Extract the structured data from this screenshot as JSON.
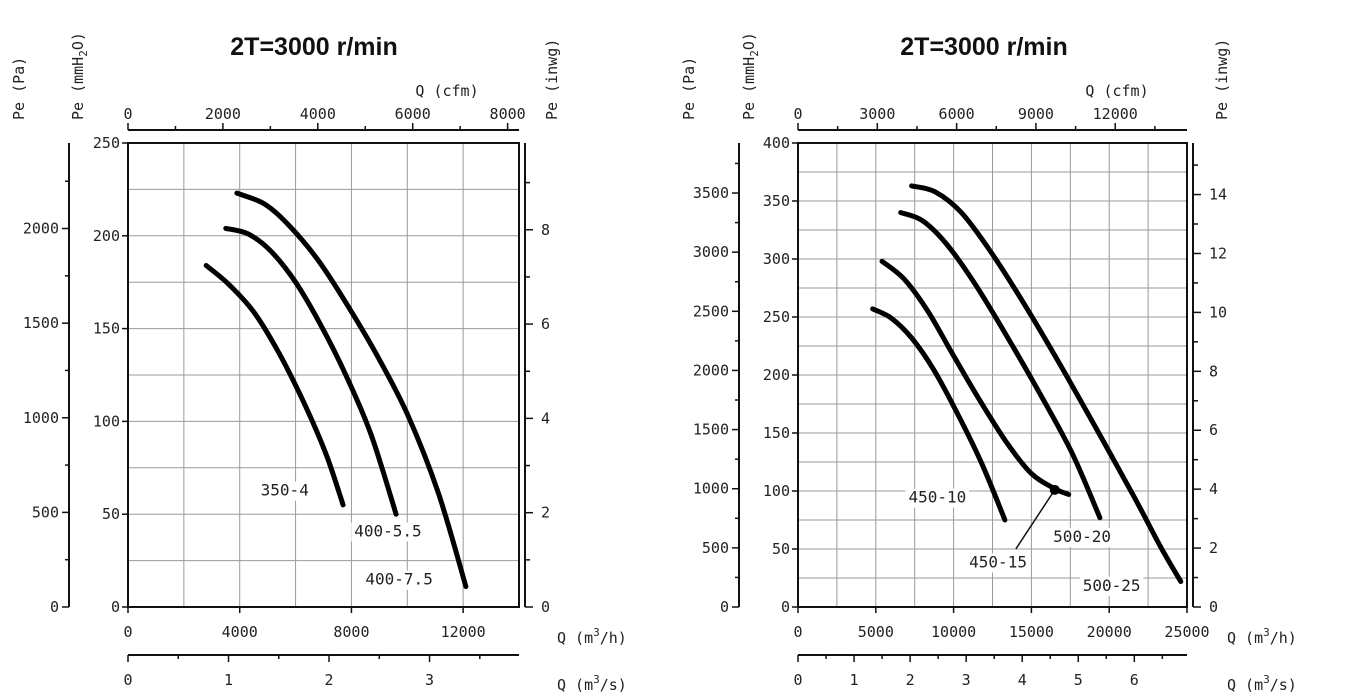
{
  "chart_data": [
    {
      "type": "line",
      "title": "2T=3000 r/min",
      "x": {
        "label": "Q (m3/h)",
        "range": [
          0,
          14000
        ],
        "ticks": [
          0,
          4000,
          8000,
          12000
        ],
        "minor_step": 2000
      },
      "x2_top": {
        "label": "Q (cfm)",
        "range": [
          0,
          8240
        ],
        "ticks": [
          0,
          2000,
          4000,
          6000,
          8000
        ],
        "minor_step": 1000
      },
      "x3_bottom": {
        "label": "Q (m3/s)",
        "range": [
          0,
          3.89
        ],
        "ticks": [
          0,
          1,
          2,
          3
        ],
        "minor_step": 0.5
      },
      "y": {
        "label": "Pe (mmH2O)",
        "range": [
          0,
          250
        ],
        "ticks": [
          0,
          50,
          100,
          150,
          200,
          250
        ],
        "grid_step": 25
      },
      "y_left_outer": {
        "label": "Pe (Pa)",
        "range": [
          0,
          2452
        ],
        "ticks": [
          0,
          500,
          1000,
          1500,
          2000
        ],
        "minor_step": 250
      },
      "y_right": {
        "label": "Pe (inwg)",
        "range": [
          0,
          9.84
        ],
        "ticks": [
          0,
          2,
          4,
          6,
          8
        ],
        "minor_step": 1
      },
      "grid": true,
      "series": [
        {
          "name": "350-4",
          "points": [
            [
              2800,
              184
            ],
            [
              3600,
              174
            ],
            [
              4500,
              159
            ],
            [
              5400,
              137
            ],
            [
              6300,
              110
            ],
            [
              7100,
              82
            ],
            [
              7700,
              55
            ]
          ],
          "label_at": [
            4750,
            60
          ]
        },
        {
          "name": "400-5.5",
          "points": [
            [
              3500,
              204
            ],
            [
              4300,
              201
            ],
            [
              5100,
              192
            ],
            [
              6000,
              175
            ],
            [
              6900,
              152
            ],
            [
              7800,
              125
            ],
            [
              8700,
              93
            ],
            [
              9600,
              50
            ]
          ],
          "label_at": [
            8100,
            38
          ]
        },
        {
          "name": "400-7.5",
          "points": [
            [
              3900,
              223
            ],
            [
              4900,
              217
            ],
            [
              5800,
              205
            ],
            [
              6800,
              187
            ],
            [
              7800,
              164
            ],
            [
              8900,
              136
            ],
            [
              10000,
              104
            ],
            [
              11100,
              62
            ],
            [
              12100,
              11
            ]
          ],
          "label_at": [
            8500,
            12
          ]
        }
      ]
    },
    {
      "type": "line",
      "title": "2T=3000 r/min",
      "x": {
        "label": "Q (m3/h)",
        "range": [
          0,
          25000
        ],
        "ticks": [
          0,
          5000,
          10000,
          15000,
          20000,
          25000
        ],
        "minor_step": 2500
      },
      "x2_top": {
        "label": "Q (cfm)",
        "range": [
          0,
          14715
        ],
        "ticks": [
          0,
          3000,
          6000,
          9000,
          12000
        ],
        "minor_step": 1500
      },
      "x3_bottom": {
        "label": "Q (m3/s)",
        "range": [
          0,
          6.94
        ],
        "ticks": [
          0,
          1,
          2,
          3,
          4,
          5,
          6
        ],
        "minor_step": 0.5
      },
      "y": {
        "label": "Pe (mmH2O)",
        "range": [
          0,
          400
        ],
        "ticks": [
          0,
          50,
          100,
          150,
          200,
          250,
          300,
          350,
          400
        ],
        "grid_step": 25
      },
      "y_left_outer": {
        "label": "Pe (Pa)",
        "range": [
          0,
          3923
        ],
        "ticks": [
          0,
          500,
          1000,
          1500,
          2000,
          2500,
          3000,
          3500
        ],
        "minor_step": 250
      },
      "y_right": {
        "label": "Pe (inwg)",
        "range": [
          0,
          15.75
        ],
        "ticks": [
          0,
          2,
          4,
          6,
          8,
          10,
          12,
          14
        ],
        "minor_step": 1
      },
      "grid": true,
      "series": [
        {
          "name": "450-10",
          "points": [
            [
              4800,
              257
            ],
            [
              6000,
              249
            ],
            [
              7300,
              232
            ],
            [
              8700,
              205
            ],
            [
              10200,
              168
            ],
            [
              11800,
              124
            ],
            [
              13300,
              75
            ]
          ],
          "label_at": [
            7100,
            90
          ]
        },
        {
          "name": "450-15",
          "points": [
            [
              5400,
              298
            ],
            [
              6800,
              283
            ],
            [
              8300,
              256
            ],
            [
              9900,
              219
            ],
            [
              11600,
              180
            ],
            [
              13400,
              142
            ],
            [
              15000,
              115
            ],
            [
              16500,
              102
            ],
            [
              17400,
              97
            ]
          ],
          "label_at": [
            11000,
            34
          ],
          "marker": [
            16500,
            101
          ],
          "leader_to": [
            14000,
            50
          ]
        },
        {
          "name": "500-20",
          "points": [
            [
              6600,
              340
            ],
            [
              8000,
              333
            ],
            [
              9600,
              312
            ],
            [
              11400,
              278
            ],
            [
              13400,
              234
            ],
            [
              15500,
              185
            ],
            [
              17600,
              133
            ],
            [
              19400,
              77
            ]
          ],
          "label_at": [
            16400,
            56
          ]
        },
        {
          "name": "500-25",
          "points": [
            [
              7300,
              363
            ],
            [
              8800,
              358
            ],
            [
              10500,
              340
            ],
            [
              12400,
              306
            ],
            [
              14500,
              262
            ],
            [
              16800,
              210
            ],
            [
              19200,
              153
            ],
            [
              21600,
              95
            ],
            [
              23300,
              52
            ],
            [
              24600,
              22
            ]
          ],
          "label_at": [
            18300,
            14
          ]
        }
      ]
    }
  ]
}
